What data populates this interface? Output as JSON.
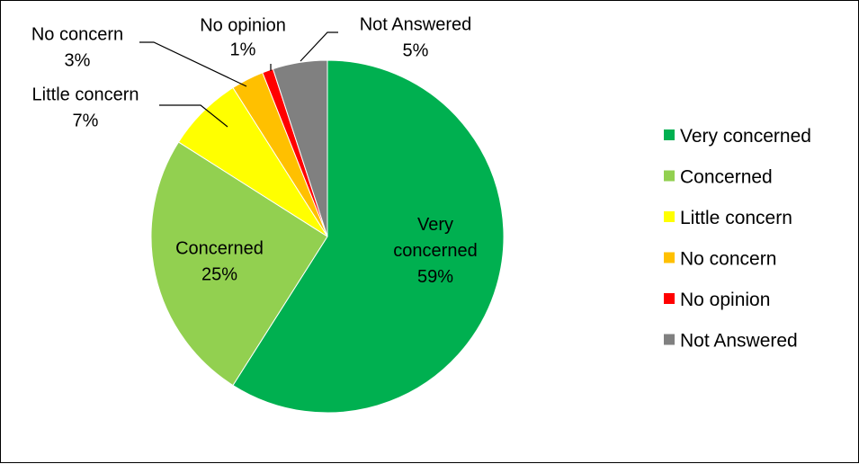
{
  "chart_data": {
    "type": "pie",
    "categories": [
      "Very concerned",
      "Concerned",
      "Little concern",
      "No concern",
      "No opinion",
      "Not Answered"
    ],
    "values": [
      59,
      25,
      7,
      3,
      1,
      5
    ],
    "value_labels": [
      "59%",
      "25%",
      "7%",
      "3%",
      "1%",
      "5%"
    ],
    "colors": [
      "#00b050",
      "#92d050",
      "#ffff00",
      "#ffc000",
      "#ff0000",
      "#808080"
    ],
    "slice_labels": [
      [
        "Very",
        "concerned",
        "59%"
      ],
      [
        "Concerned",
        "25%"
      ],
      [
        "Little concern",
        "7%"
      ],
      [
        "No concern",
        "3%"
      ],
      [
        "No opinion",
        "1%"
      ],
      [
        "Not Answered",
        "5%"
      ]
    ],
    "legend": {
      "position": "right",
      "entries": [
        "Very concerned",
        "Concerned",
        "Little concern",
        "No concern",
        "No opinion",
        "Not Answered"
      ]
    },
    "start_angle_deg": 0,
    "direction": "clockwise"
  }
}
